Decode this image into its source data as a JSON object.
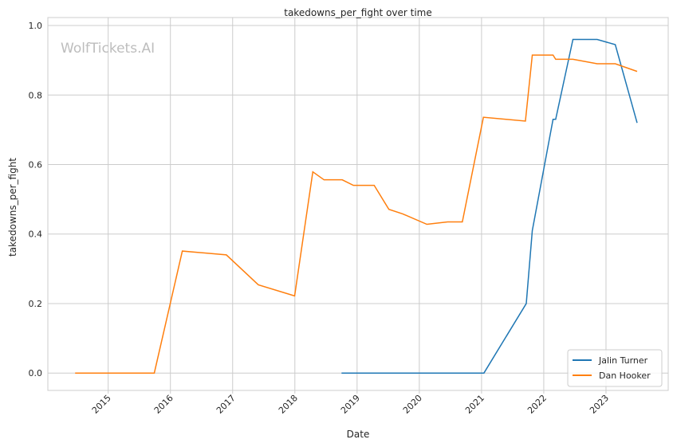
{
  "chart_data": {
    "type": "line",
    "title": "takedowns_per_fight over time",
    "xlabel": "Date",
    "ylabel": "takedowns_per_fight",
    "watermark": "WolfTickets.AI",
    "xlim": [
      "2014-01-12",
      "2024-01-01"
    ],
    "ylim": [
      -0.05,
      1.023
    ],
    "x_ticks": [
      "2015",
      "2016",
      "2017",
      "2018",
      "2019",
      "2020",
      "2021",
      "2022",
      "2023"
    ],
    "y_ticks": [
      0.0,
      0.2,
      0.4,
      0.6,
      0.8,
      1.0
    ],
    "grid": true,
    "legend_placement": "lower-right",
    "series": [
      {
        "name": "Jalin Turner",
        "color": "#1f77b4",
        "points": [
          [
            "2018-10-01",
            0
          ],
          [
            "2021-01-15",
            0
          ],
          [
            "2021-09-20",
            0.2
          ],
          [
            "2021-10-25",
            0.41
          ],
          [
            "2022-02-25",
            0.73
          ],
          [
            "2022-03-10",
            0.73
          ],
          [
            "2022-06-20",
            0.96
          ],
          [
            "2022-11-10",
            0.96
          ],
          [
            "2023-02-25",
            0.945
          ],
          [
            "2023-07-01",
            0.72
          ]
        ]
      },
      {
        "name": "Dan Hooker",
        "color": "#ff7f0e",
        "points": [
          [
            "2014-06-20",
            0
          ],
          [
            "2015-09-28",
            0
          ],
          [
            "2016-03-10",
            0.351
          ],
          [
            "2016-11-25",
            0.34
          ],
          [
            "2017-05-30",
            0.254
          ],
          [
            "2017-12-30",
            0.222
          ],
          [
            "2018-04-15",
            0.579
          ],
          [
            "2018-06-20",
            0.556
          ],
          [
            "2018-10-05",
            0.556
          ],
          [
            "2018-12-10",
            0.54
          ],
          [
            "2019-04-10",
            0.54
          ],
          [
            "2019-07-05",
            0.471
          ],
          [
            "2019-09-25",
            0.458
          ],
          [
            "2020-02-15",
            0.428
          ],
          [
            "2020-06-15",
            0.435
          ],
          [
            "2020-09-10",
            0.435
          ],
          [
            "2021-01-12",
            0.736
          ],
          [
            "2021-09-15",
            0.725
          ],
          [
            "2021-10-25",
            0.915
          ],
          [
            "2022-02-25",
            0.915
          ],
          [
            "2022-03-10",
            0.903
          ],
          [
            "2022-06-20",
            0.903
          ],
          [
            "2022-11-10",
            0.89
          ],
          [
            "2023-02-25",
            0.89
          ],
          [
            "2023-07-01",
            0.868
          ]
        ]
      }
    ]
  }
}
